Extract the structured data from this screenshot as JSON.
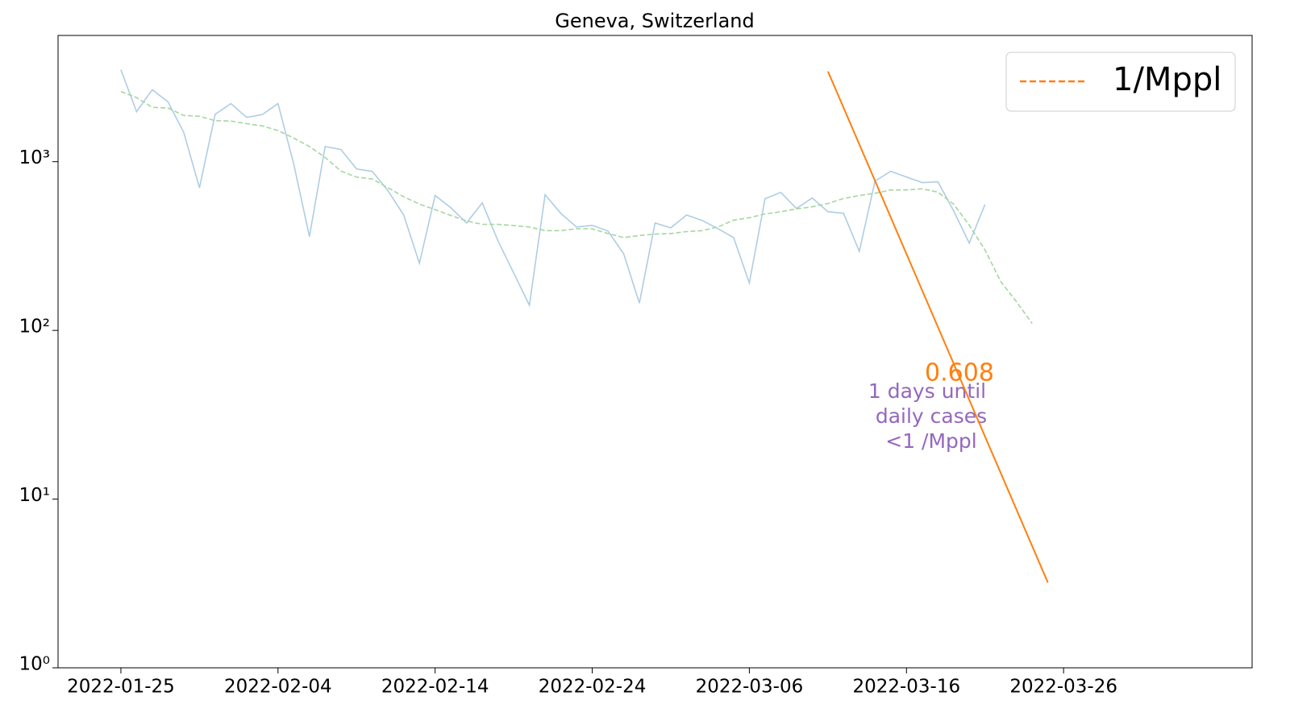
{
  "chart_data": {
    "type": "line",
    "title": "Geneva, Switzerland",
    "log_y": true,
    "xlim": [
      "2022-01-21",
      "2022-04-07"
    ],
    "xticks": [
      "2022-01-25",
      "2022-02-04",
      "2022-02-14",
      "2022-02-24",
      "2022-03-06",
      "2022-03-16",
      "2022-03-26"
    ],
    "ylim": [
      1,
      5600
    ],
    "yticks": [
      {
        "value": 1,
        "label": "10⁰"
      },
      {
        "value": 10,
        "label": "10¹"
      },
      {
        "value": 100,
        "label": "10²"
      },
      {
        "value": 1000,
        "label": "10³"
      }
    ],
    "legend": "upper right",
    "series": [
      {
        "color": "#aecde4",
        "dashed": false,
        "x": [
          "2022-01-25",
          "2022-01-26",
          "2022-01-27",
          "2022-01-28",
          "2022-01-29",
          "2022-01-30",
          "2022-01-31",
          "2022-02-01",
          "2022-02-02",
          "2022-02-03",
          "2022-02-04",
          "2022-02-05",
          "2022-02-06",
          "2022-02-07",
          "2022-02-08",
          "2022-02-09",
          "2022-02-10",
          "2022-02-11",
          "2022-02-12",
          "2022-02-13",
          "2022-02-14",
          "2022-02-15",
          "2022-02-16",
          "2022-02-17",
          "2022-02-18",
          "2022-02-19",
          "2022-02-20",
          "2022-02-21",
          "2022-02-22",
          "2022-02-23",
          "2022-02-24",
          "2022-02-25",
          "2022-02-26",
          "2022-02-27",
          "2022-02-28",
          "2022-03-01",
          "2022-03-02",
          "2022-03-03",
          "2022-03-04",
          "2022-03-05",
          "2022-03-06",
          "2022-03-07",
          "2022-03-08",
          "2022-03-09",
          "2022-03-10",
          "2022-03-11",
          "2022-03-12",
          "2022-03-13",
          "2022-03-14",
          "2022-03-15",
          "2022-03-16",
          "2022-03-17",
          "2022-03-18",
          "2022-03-19",
          "2022-03-20",
          "2022-03-21"
        ],
        "values": [
          3510,
          1980,
          2670,
          2260,
          1490,
          700,
          1910,
          2210,
          1830,
          1900,
          2210,
          970,
          360,
          1230,
          1180,
          905,
          875,
          673,
          483,
          250,
          630,
          533,
          433,
          570,
          340,
          219,
          141,
          637,
          494,
          410,
          419,
          388,
          285,
          145,
          433,
          405,
          483,
          448,
          401,
          355,
          191,
          603,
          658,
          528,
          609,
          505,
          494,
          294,
          768,
          877,
          811,
          751,
          760,
          511,
          329,
          557
        ]
      },
      {
        "color": "#a6d6a0",
        "dashed": true,
        "x": [
          "2022-01-25",
          "2022-01-26",
          "2022-01-27",
          "2022-01-28",
          "2022-01-29",
          "2022-01-30",
          "2022-01-31",
          "2022-02-01",
          "2022-02-02",
          "2022-02-03",
          "2022-02-04",
          "2022-02-05",
          "2022-02-06",
          "2022-02-07",
          "2022-02-08",
          "2022-02-09",
          "2022-02-10",
          "2022-02-11",
          "2022-02-12",
          "2022-02-13",
          "2022-02-14",
          "2022-02-15",
          "2022-02-16",
          "2022-02-17",
          "2022-02-18",
          "2022-02-19",
          "2022-02-20",
          "2022-02-21",
          "2022-02-22",
          "2022-02-23",
          "2022-02-24",
          "2022-02-25",
          "2022-02-26",
          "2022-02-27",
          "2022-02-28",
          "2022-03-01",
          "2022-03-02",
          "2022-03-03",
          "2022-03-04",
          "2022-03-05",
          "2022-03-06",
          "2022-03-07",
          "2022-03-08",
          "2022-03-09",
          "2022-03-10",
          "2022-03-11",
          "2022-03-12",
          "2022-03-13",
          "2022-03-14",
          "2022-03-15",
          "2022-03-16",
          "2022-03-17",
          "2022-03-18",
          "2022-03-19",
          "2022-03-20",
          "2022-03-21",
          "2022-03-22",
          "2022-03-23",
          "2022-03-24"
        ],
        "values": [
          2600,
          2400,
          2100,
          2080,
          1880,
          1860,
          1750,
          1740,
          1680,
          1630,
          1530,
          1380,
          1230,
          1060,
          880,
          810,
          790,
          700,
          620,
          560,
          520,
          480,
          445,
          425,
          425,
          418,
          410,
          390,
          390,
          400,
          400,
          375,
          355,
          365,
          372,
          375,
          385,
          390,
          410,
          450,
          465,
          490,
          505,
          525,
          540,
          565,
          605,
          630,
          650,
          680,
          680,
          690,
          660,
          560,
          420,
          300,
          195,
          148,
          110
        ]
      },
      {
        "name": "1/Mppl",
        "color": "#ff7f0e",
        "dashed": false,
        "x": [
          "2022-03-11",
          "2022-03-25"
        ],
        "values": [
          3430,
          3.2
        ]
      }
    ],
    "annotation": "0.608",
    "annotation_lines": [
      "1 days until",
      "daily cases",
      "<1 /Mppl"
    ]
  }
}
